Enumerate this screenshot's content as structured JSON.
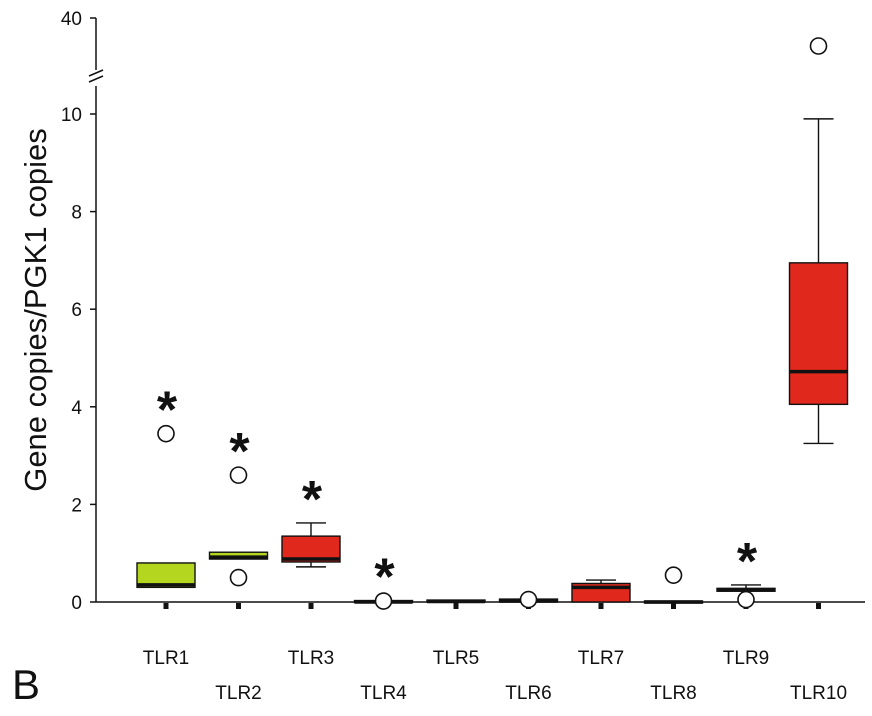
{
  "panel_letter": "B",
  "chart_data": {
    "type": "box",
    "title": "",
    "xlabel": "",
    "ylabel": "Gene copies/PGK1 copies",
    "y_axis_break": {
      "lower_range": [
        0,
        10.5
      ],
      "upper_tick": 40
    },
    "yticks": [
      0,
      2,
      4,
      6,
      8,
      10
    ],
    "categories": [
      "TLR1",
      "TLR2",
      "TLR3",
      "TLR4",
      "TLR5",
      "TLR6",
      "TLR7",
      "TLR8",
      "TLR9",
      "TLR10"
    ],
    "colors": {
      "green": "#b5d61e",
      "red": "#e0281c"
    },
    "boxes": [
      {
        "label": "TLR1",
        "color": "green",
        "q1": 0.3,
        "median": 0.35,
        "q3": 0.8,
        "whisker_low": 0.3,
        "whisker_high": 0.8,
        "outliers": [
          3.45
        ],
        "significant": true
      },
      {
        "label": "TLR2",
        "color": "green",
        "q1": 0.88,
        "median": 0.92,
        "q3": 1.02,
        "whisker_low": 0.88,
        "whisker_high": 1.02,
        "outliers": [
          2.6,
          0.5
        ],
        "significant": true
      },
      {
        "label": "TLR3",
        "color": "red",
        "q1": 0.82,
        "median": 0.88,
        "q3": 1.35,
        "whisker_low": 0.72,
        "whisker_high": 1.62,
        "outliers": [],
        "significant": true
      },
      {
        "label": "TLR4",
        "color": "red",
        "q1": 0.0,
        "median": 0.0,
        "q3": 0.03,
        "whisker_low": 0.0,
        "whisker_high": 0.03,
        "outliers": [
          0.02
        ],
        "significant": true
      },
      {
        "label": "TLR5",
        "color": "red",
        "q1": 0.0,
        "median": 0.01,
        "q3": 0.04,
        "whisker_low": 0.0,
        "whisker_high": 0.04,
        "outliers": [],
        "significant": false
      },
      {
        "label": "TLR6",
        "color": "red",
        "q1": 0.0,
        "median": 0.02,
        "q3": 0.06,
        "whisker_low": 0.0,
        "whisker_high": 0.06,
        "outliers": [
          0.05
        ],
        "significant": false
      },
      {
        "label": "TLR7",
        "color": "red",
        "q1": 0.0,
        "median": 0.3,
        "q3": 0.38,
        "whisker_low": 0.0,
        "whisker_high": 0.45,
        "outliers": [],
        "significant": false
      },
      {
        "label": "TLR8",
        "color": "red",
        "q1": 0.0,
        "median": 0.0,
        "q3": 0.02,
        "whisker_low": 0.0,
        "whisker_high": 0.02,
        "outliers": [
          0.55
        ],
        "significant": false
      },
      {
        "label": "TLR9",
        "color": "red",
        "q1": 0.22,
        "median": 0.25,
        "q3": 0.28,
        "whisker_low": 0.22,
        "whisker_high": 0.35,
        "outliers": [
          0.05
        ],
        "significant": true
      },
      {
        "label": "TLR10",
        "color": "red",
        "q1": 4.05,
        "median": 4.72,
        "q3": 6.95,
        "whisker_low": 3.25,
        "whisker_high": 9.9,
        "outliers": [
          38.5
        ],
        "significant": false
      }
    ]
  }
}
